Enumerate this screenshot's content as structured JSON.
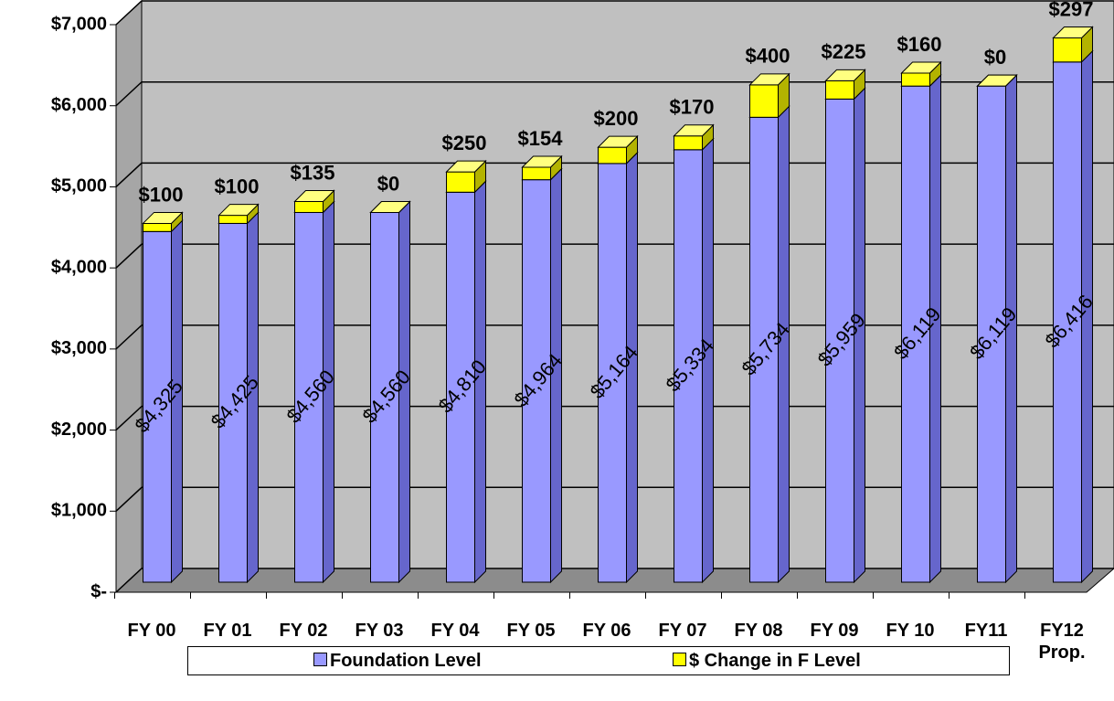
{
  "chart_data": {
    "type": "stacked_bar_3d",
    "categories": [
      "FY 00",
      "FY 01",
      "FY 02",
      "FY 03",
      "FY 04",
      "FY 05",
      "FY 06",
      "FY 07",
      "FY 08",
      "FY 09",
      "FY 10",
      "FY11",
      "FY12 Prop."
    ],
    "series": [
      {
        "name": "Foundation Level",
        "color": "#9999ff",
        "values": [
          4325,
          4425,
          4560,
          4560,
          4810,
          4964,
          5164,
          5334,
          5734,
          5959,
          6119,
          6119,
          6416
        ],
        "value_labels": [
          "$4,325",
          "$4,425",
          "$4,560",
          "$4,560",
          "$4,810",
          "$4,964",
          "$5,164",
          "$5,334",
          "$5,734",
          "$5,959",
          "$6,119",
          "$6,119",
          "$6,416"
        ]
      },
      {
        "name": "$ Change in F Level",
        "color": "#ffff00",
        "values": [
          100,
          100,
          135,
          0,
          250,
          154,
          200,
          170,
          400,
          225,
          160,
          0,
          297
        ],
        "value_labels": [
          "$100",
          "$100",
          "$135",
          "$0",
          "$250",
          "$154",
          "$200",
          "$170",
          "$400",
          "$225",
          "$160",
          "$0",
          "$297"
        ]
      }
    ],
    "ylim": [
      0,
      7000
    ],
    "yticks": [
      {
        "value": 0,
        "label": "$-"
      },
      {
        "value": 1000,
        "label": "$1,000"
      },
      {
        "value": 2000,
        "label": "$2,000"
      },
      {
        "value": 3000,
        "label": "$3,000"
      },
      {
        "value": 4000,
        "label": "$4,000"
      },
      {
        "value": 5000,
        "label": "$5,000"
      },
      {
        "value": 6000,
        "label": "$6,000"
      },
      {
        "value": 7000,
        "label": "$7,000"
      }
    ],
    "grid": true,
    "legend": "bottom"
  }
}
